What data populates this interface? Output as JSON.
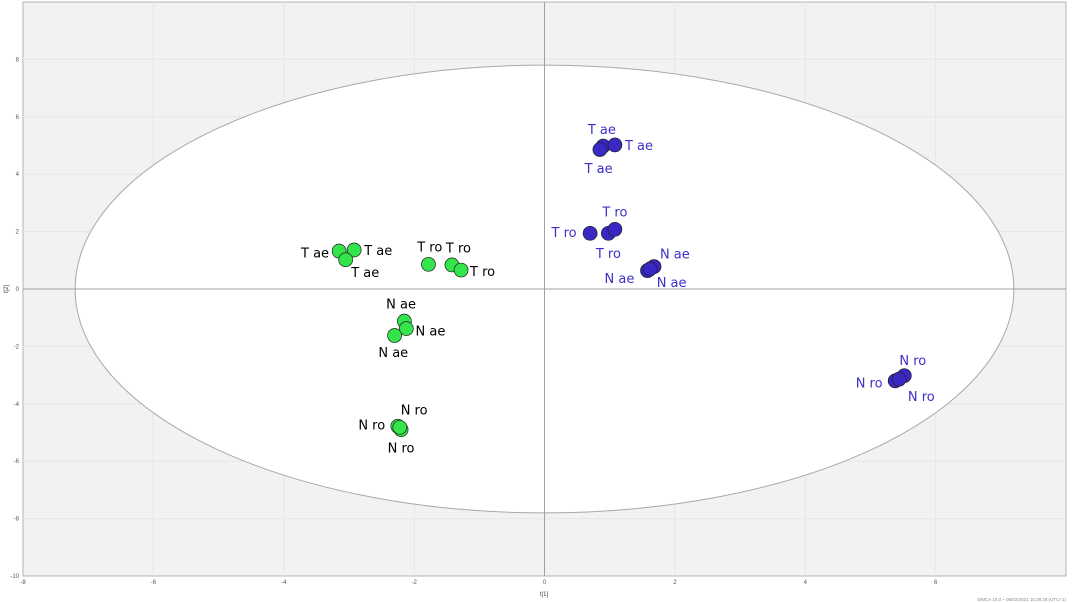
{
  "chart_data": {
    "type": "scatter",
    "xlabel": "t[1]",
    "ylabel": "t[2]",
    "xlim": [
      -8,
      8
    ],
    "ylim": [
      -10,
      10
    ],
    "x_ticks": [
      -8,
      -6,
      -4,
      -2,
      0,
      2,
      4,
      6
    ],
    "y_ticks": [
      -10,
      -8,
      -6,
      -4,
      -2,
      0,
      2,
      4,
      6,
      8
    ],
    "grid": true,
    "hotelling_ellipse": {
      "center": [
        0,
        0
      ],
      "semi_axis_x": 7.2,
      "semi_axis_y": 7.8
    },
    "footer_text": "SIMCA 15.0 – 06/02/2021 15:28:28 (UTC+1)",
    "colors": {
      "green": "#33e44a",
      "blue": "#3a28c4",
      "label_green": "#000000",
      "label_blue": "#3b30c8",
      "plot_bg": "#f2f2f2"
    },
    "series": [
      {
        "color_key": "green",
        "points": [
          {
            "x": -3.15,
            "y": 1.32
          },
          {
            "x": -2.92,
            "y": 1.36
          },
          {
            "x": -3.05,
            "y": 1.02
          },
          {
            "x": -1.78,
            "y": 0.86
          },
          {
            "x": -1.42,
            "y": 0.84
          },
          {
            "x": -1.28,
            "y": 0.66
          },
          {
            "x": -2.15,
            "y": -1.12
          },
          {
            "x": -2.12,
            "y": -1.38
          },
          {
            "x": -2.3,
            "y": -1.62
          },
          {
            "x": -2.25,
            "y": -4.78
          },
          {
            "x": -2.2,
            "y": -4.9
          },
          {
            "x": -2.22,
            "y": -4.82
          }
        ],
        "labels": [
          {
            "text": "T ae",
            "x": -3.52,
            "y": 1.28
          },
          {
            "text": "T ae",
            "x": -2.55,
            "y": 1.36
          },
          {
            "text": "T ae",
            "x": -2.75,
            "y": 0.6
          },
          {
            "text": "T ro",
            "x": -1.76,
            "y": 1.48
          },
          {
            "text": "T ro",
            "x": -1.32,
            "y": 1.44
          },
          {
            "text": "T ro",
            "x": -0.95,
            "y": 0.62
          },
          {
            "text": "N ae",
            "x": -2.2,
            "y": -0.5
          },
          {
            "text": "N ae",
            "x": -1.75,
            "y": -1.44
          },
          {
            "text": "N ae",
            "x": -2.32,
            "y": -2.2
          },
          {
            "text": "N ro",
            "x": -2.0,
            "y": -4.2
          },
          {
            "text": "N ro",
            "x": -2.65,
            "y": -4.72
          },
          {
            "text": "N ro",
            "x": -2.2,
            "y": -5.52
          }
        ]
      },
      {
        "color_key": "blue",
        "points": [
          {
            "x": 0.9,
            "y": 4.98
          },
          {
            "x": 1.08,
            "y": 5.02
          },
          {
            "x": 0.85,
            "y": 4.86
          },
          {
            "x": 0.7,
            "y": 1.94
          },
          {
            "x": 0.98,
            "y": 1.94
          },
          {
            "x": 1.08,
            "y": 2.08
          },
          {
            "x": 1.58,
            "y": 0.64
          },
          {
            "x": 1.68,
            "y": 0.78
          },
          {
            "x": 1.62,
            "y": 0.7
          },
          {
            "x": 5.38,
            "y": -3.2
          },
          {
            "x": 5.52,
            "y": -3.02
          },
          {
            "x": 5.44,
            "y": -3.14
          }
        ],
        "labels": [
          {
            "text": "T ae",
            "x": 0.88,
            "y": 5.58
          },
          {
            "text": "T ae",
            "x": 1.45,
            "y": 5.02
          },
          {
            "text": "T ae",
            "x": 0.83,
            "y": 4.22
          },
          {
            "text": "T ro",
            "x": 1.08,
            "y": 2.7
          },
          {
            "text": "T ro",
            "x": 0.3,
            "y": 1.98
          },
          {
            "text": "T ro",
            "x": 0.98,
            "y": 1.26
          },
          {
            "text": "N ae",
            "x": 2.0,
            "y": 1.24
          },
          {
            "text": "N ae",
            "x": 1.15,
            "y": 0.38
          },
          {
            "text": "N ae",
            "x": 1.95,
            "y": 0.24
          },
          {
            "text": "N ro",
            "x": 5.65,
            "y": -2.48
          },
          {
            "text": "N ro",
            "x": 4.98,
            "y": -3.26
          },
          {
            "text": "N ro",
            "x": 5.78,
            "y": -3.72
          }
        ]
      }
    ]
  }
}
